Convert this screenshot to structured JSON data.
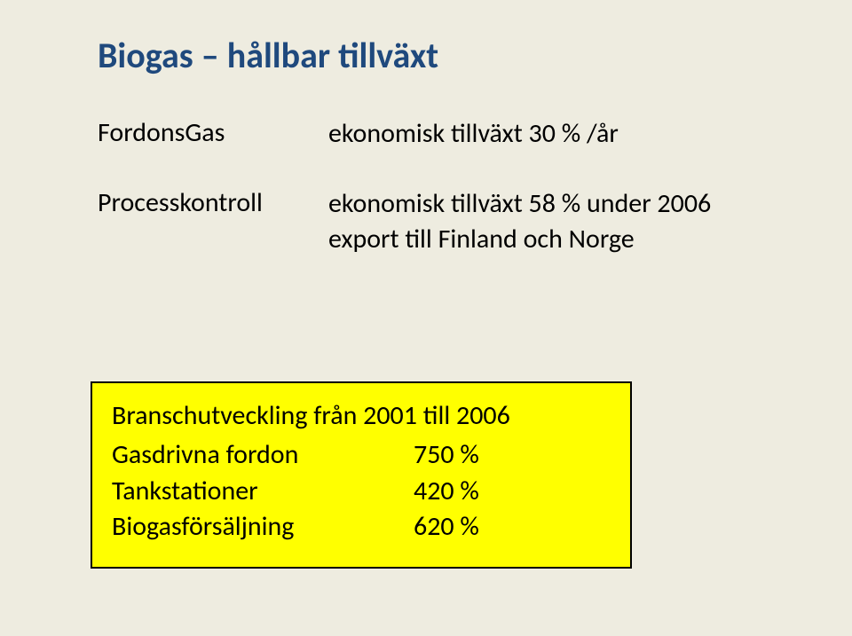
{
  "title": "Biogas – hållbar tillväxt",
  "rows": [
    {
      "label": "FordonsGas",
      "value": "ekonomisk tillväxt 30 % /år"
    },
    {
      "label": "Processkontroll",
      "value": "ekonomisk tillväxt 58 % under 2006\nexport till Finland och Norge"
    }
  ],
  "callout": {
    "title": "Branschutveckling från 2001 till 2006",
    "items": [
      {
        "label": "Gasdrivna fordon",
        "value": "750 %"
      },
      {
        "label": "Tankstationer",
        "value": "420 %"
      },
      {
        "label": "Biogasförsäljning",
        "value": "620 %"
      }
    ],
    "background_color": "#ffff00",
    "border_color": "#000000"
  },
  "colors": {
    "slide_background": "#eeece0",
    "title_color": "#1f497d",
    "body_text_color": "#000000"
  },
  "typography": {
    "title_fontsize_pt": 30,
    "body_fontsize_pt": 22,
    "font_family": "Calibri",
    "title_weight": "bold"
  }
}
